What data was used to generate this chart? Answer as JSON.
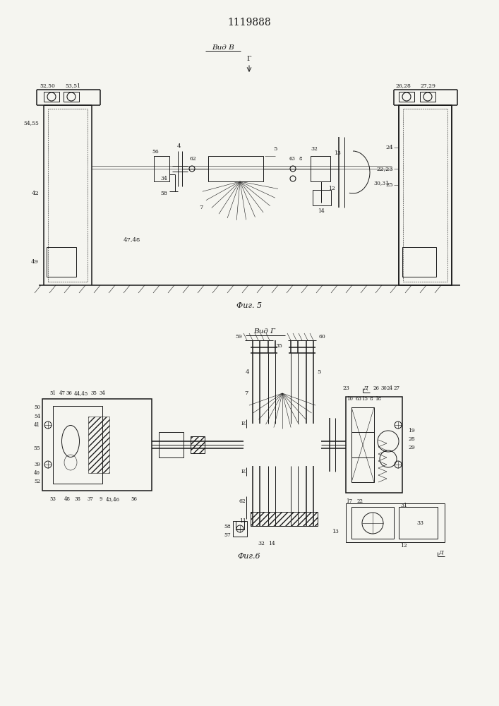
{
  "title": "1119888",
  "fig5_label": "Вид В",
  "fig5_caption": "Фиг. 5",
  "fig6_label": "Вид Г",
  "fig6_caption": "Фиг.6",
  "line_color": "#1a1a1a",
  "bg_color": "#f5f5f0",
  "lw": 0.7,
  "lw_thick": 1.1,
  "lw_thin": 0.4
}
